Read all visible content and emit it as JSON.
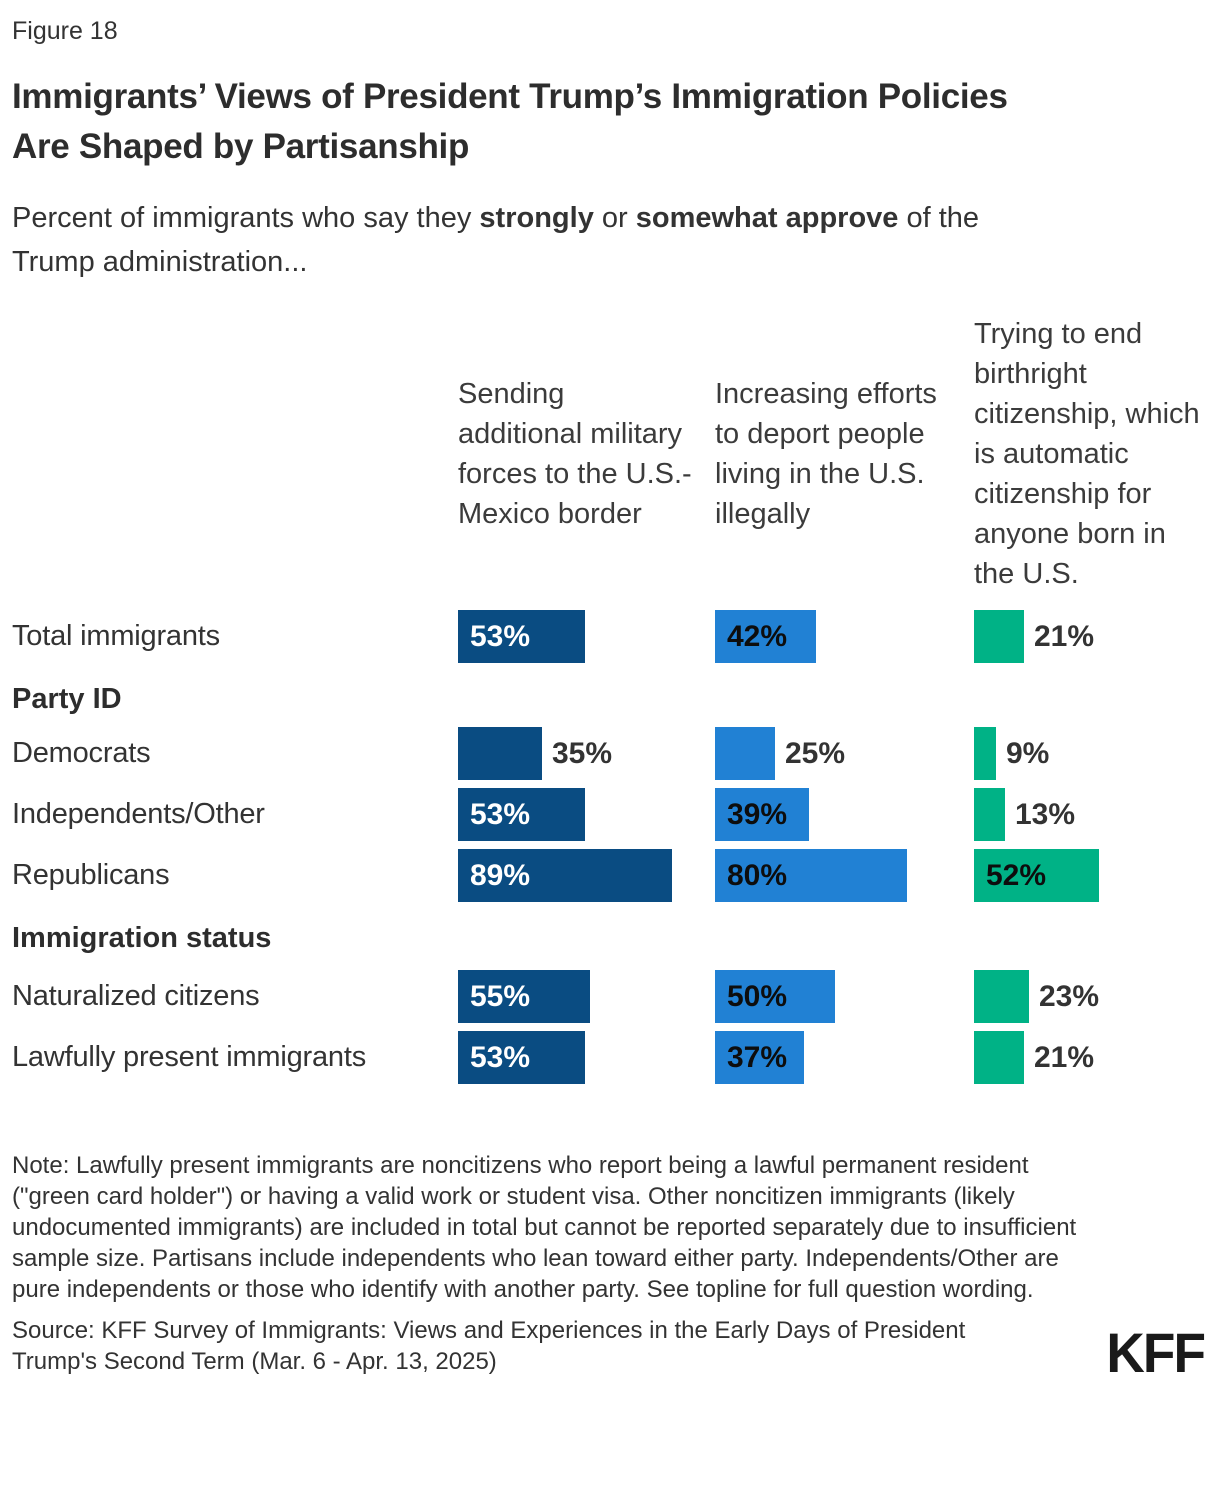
{
  "figure_label": "Figure 18",
  "title": "Immigrants’ Views of President Trump’s Immigration Policies\nAre Shaped by Partisanship",
  "subtitle": {
    "segments": [
      {
        "text": "Percent of immigrants who say they ",
        "bold": false
      },
      {
        "text": "strongly",
        "bold": true
      },
      {
        "text": " or ",
        "bold": false
      },
      {
        "text": "somewhat approve",
        "bold": true
      },
      {
        "text": " of the\nTrump administration...",
        "bold": false
      }
    ]
  },
  "chart_data": {
    "type": "bar",
    "orientation": "horizontal",
    "unit": "%",
    "xlim": [
      0,
      100
    ],
    "grid": false,
    "legend_position": "column-headers-top",
    "categories": [
      "Total immigrants",
      "Democrats",
      "Independents/Other",
      "Republicans",
      "Naturalized citizens",
      "Lawfully present immigrants"
    ],
    "layout_rows": [
      {
        "type": "bar",
        "category_index": 0
      },
      {
        "type": "section",
        "label": "Party ID"
      },
      {
        "type": "bar",
        "category_index": 1
      },
      {
        "type": "bar",
        "category_index": 2
      },
      {
        "type": "bar",
        "category_index": 3
      },
      {
        "type": "section",
        "label": "Immigration status"
      },
      {
        "type": "bar",
        "category_index": 4
      },
      {
        "type": "bar",
        "category_index": 5
      }
    ],
    "series": [
      {
        "name": "Sending additional military forces to the U.S.-Mexico border",
        "color": "#0A4C82",
        "inside_label_color": "#FFFFFF",
        "values": [
          53,
          35,
          53,
          89,
          55,
          53
        ]
      },
      {
        "name": "Increasing efforts to deport people living in the U.S. illegally",
        "color": "#2181D4",
        "inside_label_color": "#0D0D0D",
        "values": [
          42,
          25,
          39,
          80,
          50,
          37
        ]
      },
      {
        "name": "Trying to end birthright citizenship, which is automatic citizenship for anyone born in the U.S.",
        "color": "#00B286",
        "inside_label_color": "#0D0D0D",
        "values": [
          21,
          9,
          13,
          52,
          23,
          21
        ]
      }
    ]
  },
  "note": "Note: Lawfully present immigrants are noncitizens who report being a lawful permanent resident (\"green card holder\") or having a valid work or student visa. Other noncitizen immigrants (likely undocumented immigrants) are included in total but cannot be reported separately due to insufficient sample size. Partisans include independents who lean toward either party. Independents/Other are pure independents or those who identify with another party. See topline for full question wording.",
  "source": "Source: KFF Survey of Immigrants: Views and Experiences in the Early Days of President Trump's Second Term (Mar. 6 - Apr. 13, 2025)",
  "logo_text": "KFF"
}
